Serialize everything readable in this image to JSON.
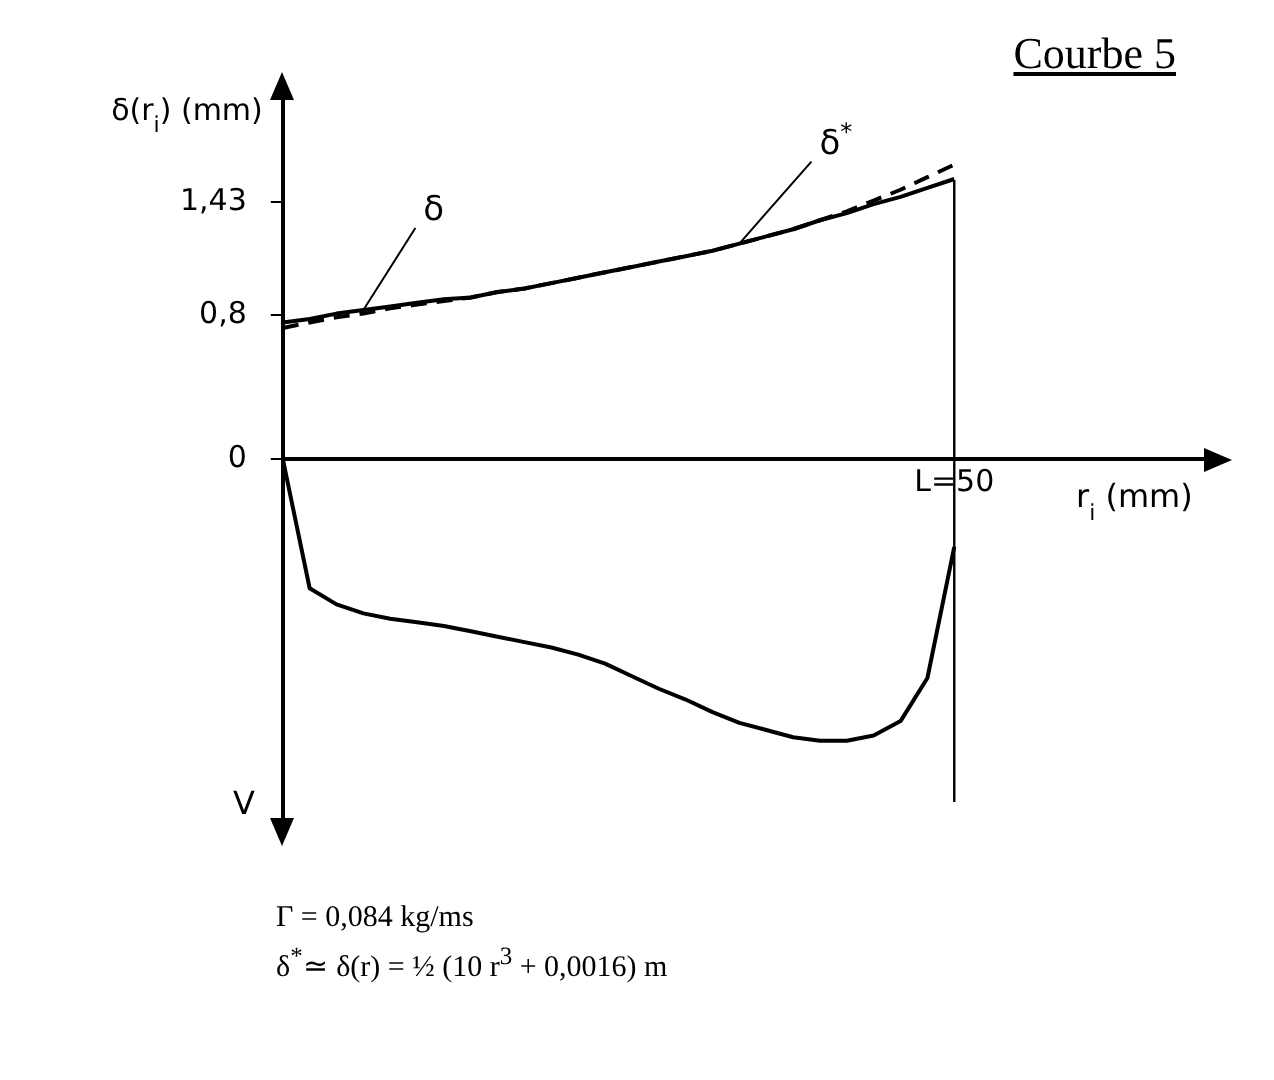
{
  "chart_data": {
    "type": "line",
    "title": "Courbe 5",
    "xlabel": "r$_{i}$ (mm)",
    "ylabel": "δ(r$_{i}$) (mm)",
    "categories": [
      null,
      null,
      null,
      null,
      null,
      null,
      null,
      null,
      null,
      null,
      null,
      null,
      null,
      null,
      null,
      null,
      null,
      null,
      null,
      null,
      null,
      null,
      null,
      null,
      null,
      "L=50",
      null,
      null,
      null,
      null,
      null,
      null,
      null,
      null,
      null
    ],
    "ylim": [
      -2,
      2
    ],
    "yticks": [
      0,
      {
        "value": 0.8,
        "label": "0,8"
      },
      {
        "value": 1.43,
        "label": "1,43"
      }
    ],
    "grid": false,
    "legend": false,
    "marker": "none",
    "ref_lines": [
      {
        "axis": "x",
        "value": "L=50",
        "label": null
      }
    ],
    "series": [
      {
        "name": "δ",
        "color": "#000000",
        "line_style": "solid",
        "values": [
          0.76,
          0.78,
          0.81,
          0.83,
          0.85,
          0.87,
          0.89,
          0.9,
          0.93,
          0.95,
          0.98,
          1.01,
          1.04,
          1.07,
          1.1,
          1.13,
          1.16,
          1.2,
          1.24,
          1.28,
          1.33,
          1.37,
          1.42,
          1.46,
          1.51,
          1.56,
          null,
          null,
          null,
          null,
          null,
          null,
          null,
          null,
          null
        ]
      },
      {
        "name": "δ$^{*}$",
        "color": "#000000",
        "line_style": "dashed",
        "values": [
          0.73,
          0.76,
          0.79,
          0.81,
          0.84,
          0.86,
          0.88,
          0.9,
          0.93,
          0.95,
          0.98,
          1.01,
          1.04,
          1.07,
          1.1,
          1.13,
          1.16,
          1.2,
          1.24,
          1.28,
          1.33,
          1.38,
          1.44,
          1.5,
          1.57,
          1.64,
          null,
          null,
          null,
          null,
          null,
          null,
          null,
          null,
          null
        ]
      },
      {
        "color": "#000000",
        "line_style": "solid",
        "values": [
          0,
          -0.72,
          -0.81,
          -0.86,
          -0.89,
          -0.91,
          -0.93,
          -0.96,
          -0.99,
          -1.02,
          -1.05,
          -1.09,
          -1.14,
          -1.21,
          -1.28,
          -1.34,
          -1.41,
          -1.47,
          -1.51,
          -1.55,
          -1.57,
          -1.57,
          -1.54,
          -1.46,
          -1.22,
          -0.49,
          null,
          null,
          null,
          null,
          null,
          null,
          null,
          null,
          null
        ]
      }
    ],
    "annotations": [
      "V",
      "Γ = 0,084 kg/ms",
      "δ$^{*}$≃ δ(r) = ½ (10 r$^{3}$ + 0,0016) m"
    ]
  }
}
